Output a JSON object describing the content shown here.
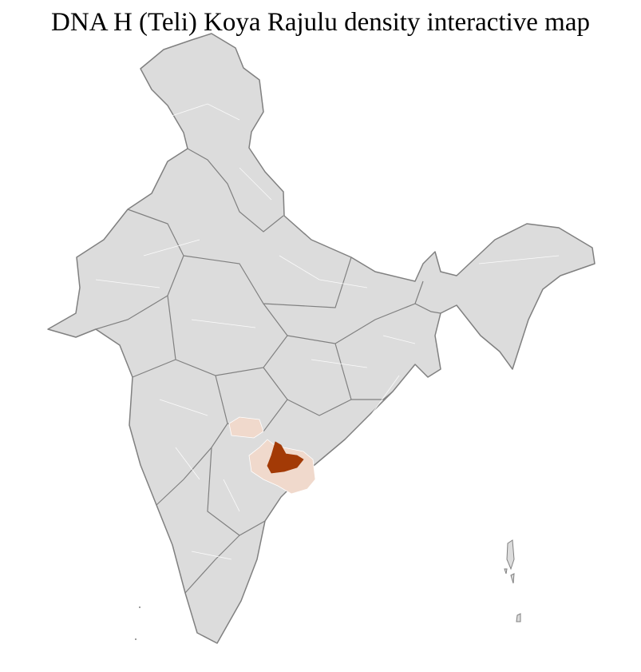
{
  "title": "DNA H (Teli) Koya Rajulu density interactive map",
  "map": {
    "region": "India districts",
    "colors": {
      "base_fill": "#dcdcdc",
      "district_border": "#ffffff",
      "state_border": "#808080",
      "low_density": "#f0d9cc",
      "high_density": "#a33a06"
    }
  }
}
